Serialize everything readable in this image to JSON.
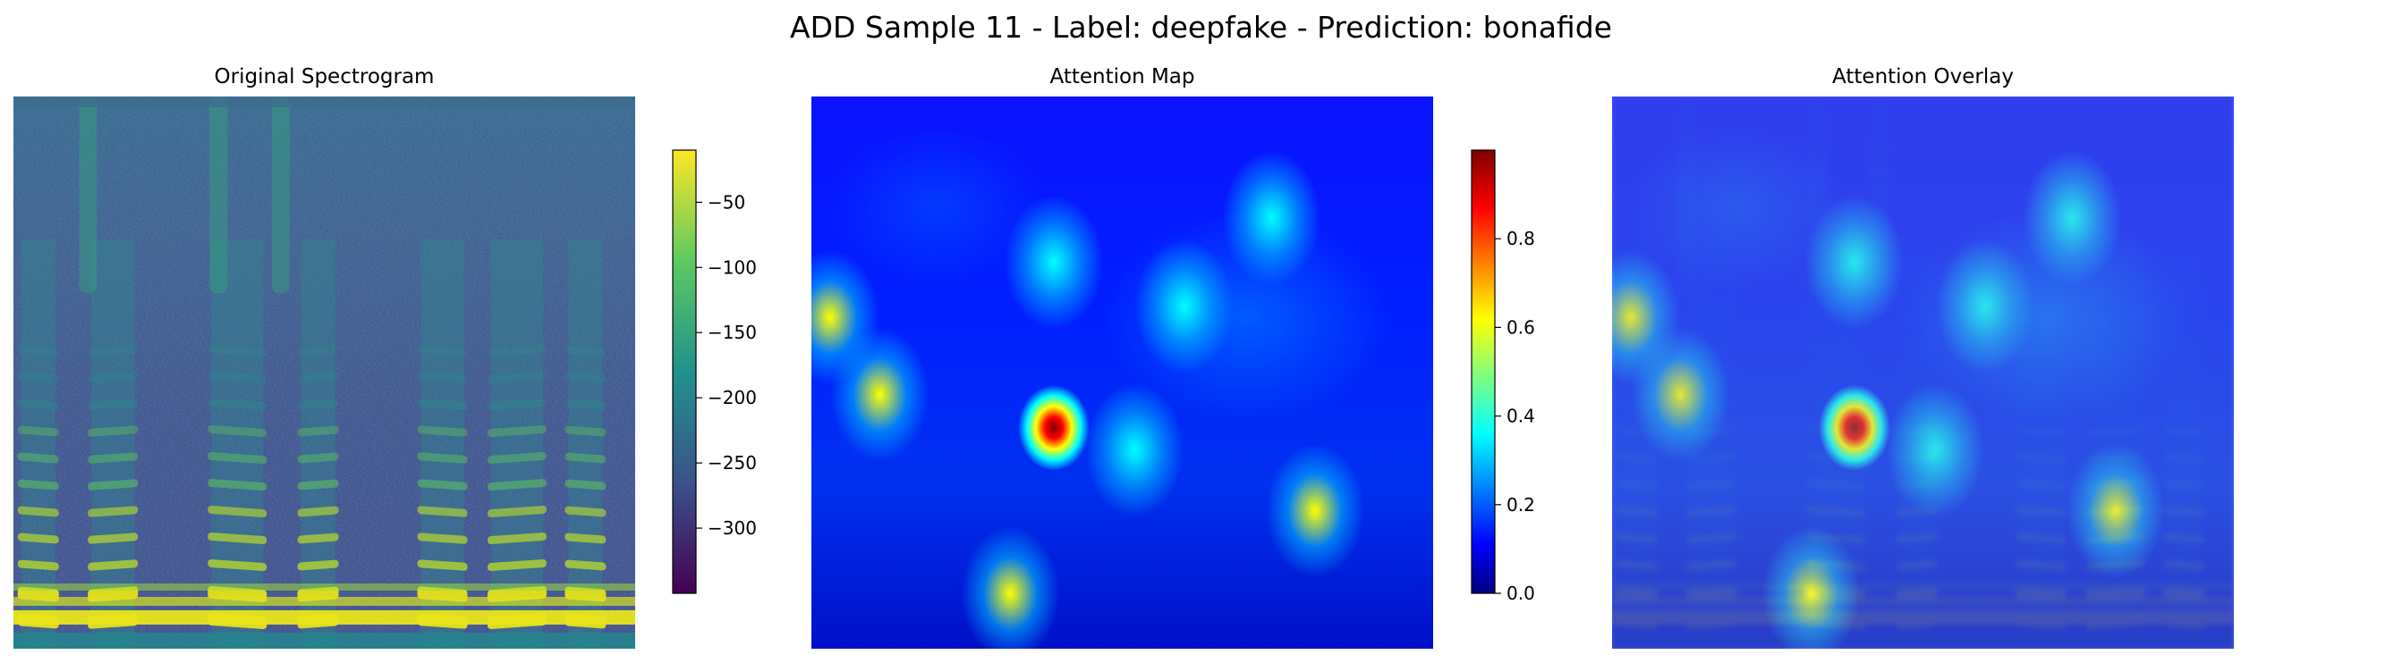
{
  "figure": {
    "suptitle": "ADD Sample 11 - Label: deepfake - Prediction: bonafide"
  },
  "chart_data": [
    {
      "type": "heatmap",
      "title": "Original Spectrogram",
      "colormap": "viridis",
      "axes_visible": false,
      "colorbar": {
        "range": [
          -350,
          -10
        ],
        "ticks": [
          -50,
          -100,
          -150,
          -200,
          -250,
          -300
        ],
        "tick_labels": [
          "−50",
          "−100",
          "−150",
          "−200",
          "−250",
          "−300"
        ]
      },
      "harmonic_bursts_x": [
        0.04,
        0.16,
        0.36,
        0.49,
        0.69,
        0.81,
        0.92
      ]
    },
    {
      "type": "heatmap",
      "title": "Attention Map",
      "colormap": "jet",
      "axes_visible": false,
      "colorbar": {
        "range": [
          0.0,
          1.0
        ],
        "ticks": [
          0.0,
          0.2,
          0.4,
          0.6,
          0.8
        ],
        "tick_labels": [
          "0.0",
          "0.2",
          "0.4",
          "0.6",
          "0.8"
        ]
      },
      "hotspots": [
        {
          "x": 0.39,
          "y": 0.6,
          "value": 0.95
        },
        {
          "x": 0.81,
          "y": 0.75,
          "value": 0.45
        },
        {
          "x": 0.52,
          "y": 0.64,
          "value": 0.35
        },
        {
          "x": 0.03,
          "y": 0.4,
          "value": 0.45
        },
        {
          "x": 0.11,
          "y": 0.54,
          "value": 0.42
        },
        {
          "x": 0.32,
          "y": 0.9,
          "value": 0.4
        },
        {
          "x": 0.39,
          "y": 0.3,
          "value": 0.35
        },
        {
          "x": 0.6,
          "y": 0.38,
          "value": 0.35
        },
        {
          "x": 0.74,
          "y": 0.22,
          "value": 0.3
        }
      ]
    },
    {
      "type": "heatmap",
      "title": "Attention Overlay",
      "colormap": "jet over viridis",
      "axes_visible": false
    }
  ]
}
